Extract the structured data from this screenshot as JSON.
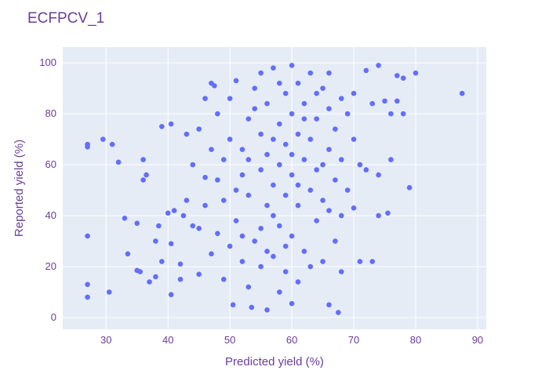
{
  "chart_data": {
    "type": "scatter",
    "title": "ECFPCV_1",
    "x_label": "Predicted yield (%)",
    "y_label": "Reported yield (%)",
    "color": "#636efa",
    "grid": true,
    "xlim": [
      23.0,
      91.4
    ],
    "ylim": [
      -4.6,
      106.2
    ],
    "xticks": [
      30,
      40,
      50,
      60,
      70,
      80,
      90
    ],
    "yticks": [
      0,
      20,
      40,
      60,
      80,
      100
    ],
    "x": [
      27,
      27,
      27,
      27,
      27,
      29.5,
      31,
      30.5,
      32,
      33,
      33.5,
      35,
      35,
      35.5,
      36,
      36,
      36.5,
      37,
      38,
      38,
      38.5,
      39,
      39,
      40,
      40.5,
      40.5,
      40.5,
      41,
      42,
      42,
      42.5,
      43,
      43,
      44,
      44,
      45,
      45,
      45,
      46,
      47,
      47.5,
      87.5,
      80,
      79,
      75.5,
      73,
      71,
      74,
      68,
      70,
      67.5,
      56,
      50.5,
      53.5,
      60,
      66,
      77,
      78,
      77,
      78,
      76,
      74,
      72,
      75,
      73,
      72,
      71,
      76,
      74,
      70,
      48,
      48,
      47,
      49,
      50,
      49,
      50,
      48,
      49,
      50,
      51,
      51,
      52,
      52,
      52,
      53,
      53,
      53,
      54,
      54,
      55,
      55,
      55,
      55,
      56,
      56,
      56,
      57,
      57,
      57,
      58,
      58,
      58,
      58,
      59,
      59,
      59,
      59,
      60,
      60,
      60,
      60,
      61,
      61,
      61,
      61,
      62,
      62,
      62,
      63,
      63,
      63,
      64,
      64,
      64,
      65,
      65,
      65,
      66,
      66,
      66,
      67,
      67,
      67,
      68,
      68,
      68,
      69,
      69,
      70,
      46,
      46,
      47,
      51,
      52,
      53,
      54,
      56,
      57,
      58,
      59,
      60,
      61,
      62,
      63,
      64,
      65,
      66,
      55,
      57
    ],
    "values": [
      68,
      67,
      32,
      13,
      8,
      70,
      68,
      10,
      61,
      39,
      25,
      37,
      18.5,
      18,
      54,
      62,
      56,
      14,
      16,
      30,
      36,
      75,
      22,
      41,
      76,
      9,
      29,
      42,
      21,
      15,
      40,
      46,
      72,
      36,
      60,
      35,
      17,
      74,
      86,
      92,
      91,
      88,
      96,
      51,
      41,
      22,
      22,
      40,
      40,
      43,
      2,
      3,
      5,
      4,
      5.5,
      5,
      95,
      94,
      85,
      80,
      80,
      99,
      97,
      85,
      84,
      58,
      60,
      62,
      56,
      88,
      54,
      33,
      25,
      15,
      28,
      62,
      70,
      80,
      46,
      86,
      93,
      38,
      22,
      56,
      66,
      78,
      12,
      48,
      90,
      30,
      58,
      20,
      72,
      96,
      44,
      64,
      84,
      24,
      52,
      98,
      36,
      76,
      10,
      60,
      88,
      48,
      68,
      18,
      99,
      56,
      80,
      32,
      44,
      72,
      92,
      14,
      62,
      84,
      26,
      50,
      96,
      70,
      38,
      78,
      58,
      90,
      46,
      22,
      66,
      82,
      96,
      54,
      74,
      30,
      86,
      62,
      18,
      80,
      50,
      70,
      44,
      55,
      66,
      50,
      32,
      62,
      82,
      26,
      40,
      92,
      28,
      64,
      52,
      78,
      20,
      88,
      60,
      42,
      35,
      70
    ]
  }
}
